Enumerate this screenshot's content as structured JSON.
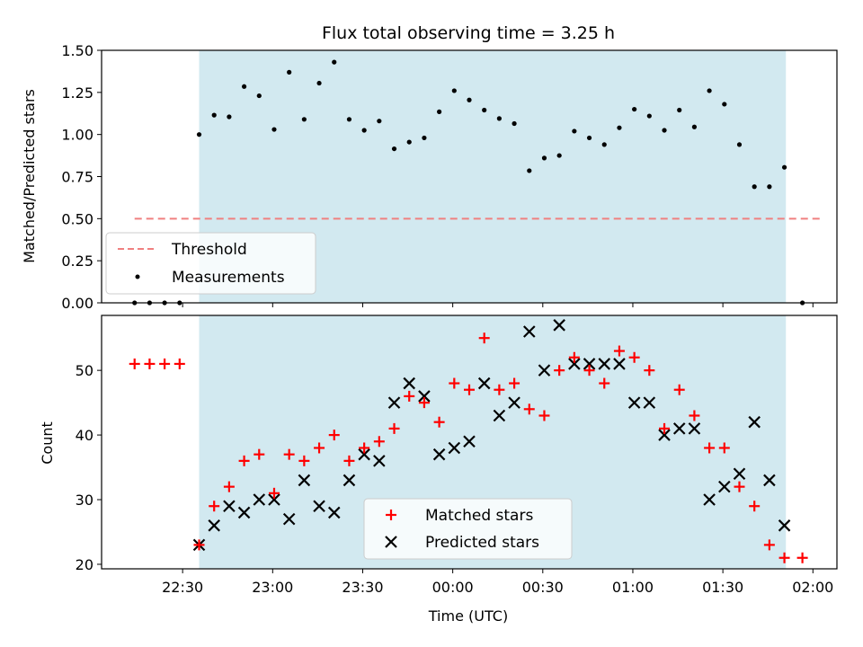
{
  "chart_data": [
    {
      "type": "scatter",
      "title": "Flux total observing time = 3.25 h",
      "ylabel": "Matched/Predicted stars",
      "xlabel": "",
      "ylim": [
        0,
        1.5
      ],
      "yticks": [
        "0.00",
        "0.25",
        "0.50",
        "0.75",
        "1.00",
        "1.25",
        "1.50"
      ],
      "yticks_values": [
        0,
        0.25,
        0.5,
        0.75,
        1.0,
        1.25,
        1.5
      ],
      "shaded_region_minutes": [
        1355.5,
        1551
      ],
      "shaded_color": "#d2e9f0",
      "threshold": {
        "name": "Threshold",
        "y": 0.5,
        "x_range_minutes": [
          1334,
          1563
        ],
        "color": "#f08080"
      },
      "series": [
        {
          "name": "Measurements",
          "color": "#000000",
          "x_minutes": [
            1334,
            1339,
            1344,
            1349,
            1355.5,
            1360.5,
            1365.5,
            1370.5,
            1375.5,
            1380.5,
            1385.5,
            1390.5,
            1395.5,
            1400.5,
            1405.5,
            1410.5,
            1415.5,
            1420.5,
            1425.5,
            1430.5,
            1435.5,
            1440.5,
            1445.5,
            1450.5,
            1455.5,
            1460.5,
            1465.5,
            1470.5,
            1475.5,
            1480.5,
            1485.5,
            1490.5,
            1495.5,
            1500.5,
            1505.5,
            1510.5,
            1515.5,
            1520.5,
            1525.5,
            1530.5,
            1535.5,
            1540.5,
            1545.5,
            1550.5,
            1556.5
          ],
          "y": [
            0.0,
            0.0,
            0.0,
            0.0,
            1.0,
            1.115,
            1.105,
            1.285,
            1.23,
            1.03,
            1.37,
            1.09,
            1.305,
            1.43,
            1.09,
            1.025,
            1.08,
            0.915,
            0.955,
            0.98,
            1.135,
            1.26,
            1.205,
            1.145,
            1.095,
            1.065,
            0.785,
            0.86,
            0.875,
            1.02,
            0.98,
            0.94,
            1.04,
            1.15,
            1.11,
            1.025,
            1.145,
            1.045,
            1.26,
            1.18,
            0.94,
            0.69,
            0.69,
            0.805,
            0.0
          ]
        }
      ],
      "legend": [
        "Threshold",
        "Measurements"
      ],
      "legend_position": "lower-left"
    },
    {
      "type": "scatter",
      "title": "",
      "xlabel": "Time (UTC)",
      "ylabel": "Count",
      "ylim": [
        19.3,
        58.5
      ],
      "yticks": [
        "20",
        "30",
        "40",
        "50"
      ],
      "yticks_values": [
        20,
        30,
        40,
        50
      ],
      "xticks": [
        "22:30",
        "23:00",
        "23:30",
        "00:00",
        "00:30",
        "01:00",
        "01:30",
        "02:00"
      ],
      "xticks_minutes": [
        1350,
        1380,
        1410,
        1440,
        1470,
        1500,
        1530,
        1560
      ],
      "xlim_minutes": [
        1323,
        1568
      ],
      "shaded_region_minutes": [
        1355.5,
        1551
      ],
      "series": [
        {
          "name": "Matched stars",
          "marker": "plus",
          "color": "#ff0000",
          "x_minutes": [
            1334,
            1339,
            1344,
            1349,
            1355.5,
            1360.5,
            1365.5,
            1370.5,
            1375.5,
            1380.5,
            1385.5,
            1390.5,
            1395.5,
            1400.5,
            1405.5,
            1410.5,
            1415.5,
            1420.5,
            1425.5,
            1430.5,
            1435.5,
            1440.5,
            1445.5,
            1450.5,
            1455.5,
            1460.5,
            1465.5,
            1470.5,
            1475.5,
            1480.5,
            1485.5,
            1490.5,
            1495.5,
            1500.5,
            1505.5,
            1510.5,
            1515.5,
            1520.5,
            1525.5,
            1530.5,
            1535.5,
            1540.5,
            1545.5,
            1550.5,
            1556.5
          ],
          "y": [
            51,
            51,
            51,
            51,
            23,
            29,
            32,
            36,
            37,
            31,
            37,
            36,
            38,
            40,
            36,
            38,
            39,
            41,
            46,
            45,
            42,
            48,
            47,
            55,
            47,
            48,
            44,
            43,
            50,
            52,
            50,
            48,
            53,
            52,
            50,
            41,
            47,
            43,
            38,
            38,
            32,
            29,
            23,
            21,
            21
          ]
        },
        {
          "name": "Predicted stars",
          "marker": "x",
          "color": "#000000",
          "x_minutes": [
            1355.5,
            1360.5,
            1365.5,
            1370.5,
            1375.5,
            1380.5,
            1385.5,
            1390.5,
            1395.5,
            1400.5,
            1405.5,
            1410.5,
            1415.5,
            1420.5,
            1425.5,
            1430.5,
            1435.5,
            1440.5,
            1445.5,
            1450.5,
            1455.5,
            1460.5,
            1465.5,
            1470.5,
            1475.5,
            1480.5,
            1485.5,
            1490.5,
            1495.5,
            1500.5,
            1505.5,
            1510.5,
            1515.5,
            1520.5,
            1525.5,
            1530.5,
            1535.5,
            1540.5,
            1545.5,
            1550.5
          ],
          "y": [
            23,
            26,
            29,
            28,
            30,
            30,
            27,
            33,
            29,
            28,
            33,
            37,
            36,
            45,
            48,
            46,
            37,
            38,
            39,
            48,
            43,
            45,
            56,
            50,
            57,
            51,
            51,
            51,
            51,
            45,
            45,
            40,
            41,
            41,
            30,
            32,
            34,
            42,
            33,
            26
          ]
        }
      ],
      "legend": [
        "Matched stars",
        "Predicted stars"
      ],
      "legend_position": "lower-center"
    }
  ]
}
